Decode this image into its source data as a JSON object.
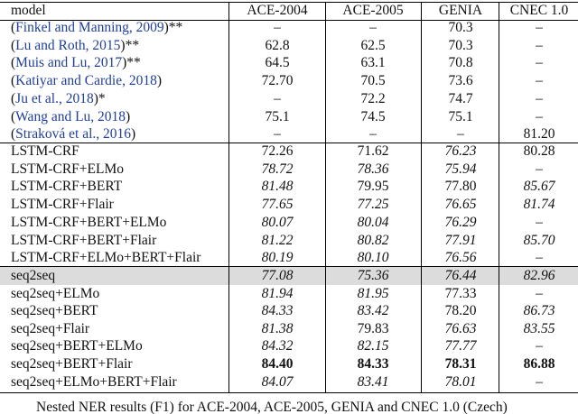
{
  "table": {
    "header": [
      "model",
      "ACE-2004",
      "ACE-2005",
      "GENIA",
      "CNEC 1.0"
    ],
    "rows": [
      [
        "(Finkel and Manning, 2009)**",
        "–",
        "–",
        "70.3",
        "–"
      ],
      [
        "(Lu and Roth, 2015)**",
        "62.8",
        "62.5",
        "70.3",
        "–"
      ],
      [
        "(Muis and Lu, 2017)**",
        "64.5",
        "63.1",
        "70.8",
        "–"
      ],
      [
        "(Katiyar and Cardie, 2018)",
        "72.70",
        "70.5",
        "73.6",
        "–"
      ],
      [
        "(Ju et al., 2018)*",
        "–",
        "72.2",
        "74.7",
        "–"
      ],
      [
        "(Wang and Lu, 2018)",
        "75.1",
        "74.5",
        "75.1",
        "–"
      ],
      [
        "(Straková et al., 2016)",
        "–",
        "–",
        "–",
        "81.20"
      ],
      [
        "LSTM-CRF",
        "72.26",
        "71.62",
        "76.23",
        "80.28"
      ],
      [
        "LSTM-CRF+ELMo",
        "78.72",
        "78.36",
        "75.94",
        "–"
      ],
      [
        "LSTM-CRF+BERT",
        "81.48",
        "79.95",
        "77.80",
        "85.67"
      ],
      [
        "LSTM-CRF+Flair",
        "77.65",
        "77.25",
        "76.65",
        "81.74"
      ],
      [
        "LSTM-CRF+BERT+ELMo",
        "80.07",
        "80.04",
        "76.29",
        "–"
      ],
      [
        "LSTM-CRF+BERT+Flair",
        "81.22",
        "80.82",
        "77.91",
        "85.70"
      ],
      [
        "LSTM-CRF+ELMo+BERT+Flair",
        "80.19",
        "80.10",
        "76.56",
        "–"
      ],
      [
        "seq2seq",
        "77.08",
        "75.36",
        "76.44",
        "82.96"
      ],
      [
        "seq2seq+ELMo",
        "81.94",
        "81.95",
        "77.33",
        "–"
      ],
      [
        "seq2seq+BERT",
        "84.33",
        "83.42",
        "78.20",
        "86.73"
      ],
      [
        "seq2seq+Flair",
        "81.38",
        "79.83",
        "76.63",
        "83.55"
      ],
      [
        "seq2seq+BERT+ELMo",
        "84.32",
        "82.15",
        "77.77",
        "–"
      ],
      [
        "seq2seq+BERT+Flair",
        "84.40",
        "84.33",
        "78.31",
        "86.88"
      ],
      [
        "seq2seq+ELMo+BERT+Flair",
        "84.07",
        "83.41",
        "78.01",
        "–"
      ]
    ],
    "caption": "Nested NER results (F1) for ACE-2004, ACE-2005, GENIA and CNEC 1.0 (Czech)"
  }
}
